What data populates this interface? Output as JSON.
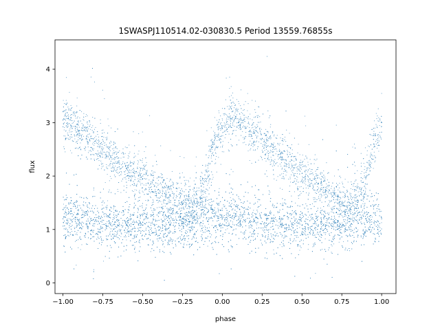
{
  "chart_data": {
    "type": "scatter",
    "title": "1SWASPJ110514.02-030830.5 Period 13559.76855s",
    "xlabel": "phase",
    "ylabel": "flux",
    "xlim": [
      -1.05,
      1.09
    ],
    "ylim": [
      -0.2,
      4.55
    ],
    "xticks": [
      -1.0,
      -0.75,
      -0.5,
      -0.25,
      0.0,
      0.25,
      0.5,
      0.75,
      1.0
    ],
    "xtick_labels": [
      "−1.00",
      "−0.75",
      "−0.50",
      "−0.25",
      "0.00",
      "0.25",
      "0.50",
      "0.75",
      "1.00"
    ],
    "yticks": [
      0,
      1,
      2,
      3,
      4
    ],
    "ytick_labels": [
      "0",
      "1",
      "2",
      "3",
      "4"
    ],
    "grid": false,
    "point_color": "#1f77b4",
    "series": [
      {
        "x": [
          -1.0,
          -0.95,
          -0.9,
          -0.85,
          -0.8,
          -0.75,
          -0.7,
          -0.65,
          -0.6,
          -0.55,
          -0.5,
          -0.45,
          -0.4,
          -0.35,
          -0.3,
          -0.25,
          -0.2,
          -0.15,
          -0.1,
          -0.05,
          0.0,
          0.05,
          0.1,
          0.15,
          0.2,
          0.25,
          0.3,
          0.35,
          0.4,
          0.45,
          0.5,
          0.55,
          0.6,
          0.65,
          0.7,
          0.75,
          0.8,
          0.85,
          0.9,
          0.95,
          1.0
        ],
        "y": [
          3.05,
          2.95,
          2.85,
          2.75,
          2.65,
          2.5,
          2.38,
          2.28,
          2.15,
          2.05,
          1.95,
          1.85,
          1.75,
          1.65,
          1.55,
          1.47,
          1.42,
          1.5,
          1.9,
          2.6,
          2.9,
          3.05,
          3.0,
          2.9,
          2.8,
          2.7,
          2.55,
          2.4,
          2.3,
          2.15,
          2.05,
          1.95,
          1.85,
          1.72,
          1.6,
          1.5,
          1.45,
          1.55,
          1.95,
          2.6,
          3.0
        ]
      },
      {
        "x": [
          -1.0,
          -0.9,
          -0.8,
          -0.7,
          -0.6,
          -0.5,
          -0.4,
          -0.3,
          -0.2,
          -0.1,
          0.0,
          0.1,
          0.2,
          0.3,
          0.4,
          0.5,
          0.6,
          0.7,
          0.8,
          0.9,
          1.0
        ],
        "y": [
          1.2,
          1.18,
          1.15,
          1.12,
          1.1,
          1.08,
          1.06,
          1.05,
          1.15,
          1.2,
          1.2,
          1.18,
          1.15,
          1.12,
          1.1,
          1.08,
          1.06,
          1.05,
          1.15,
          1.2,
          1.2
        ]
      }
    ]
  }
}
